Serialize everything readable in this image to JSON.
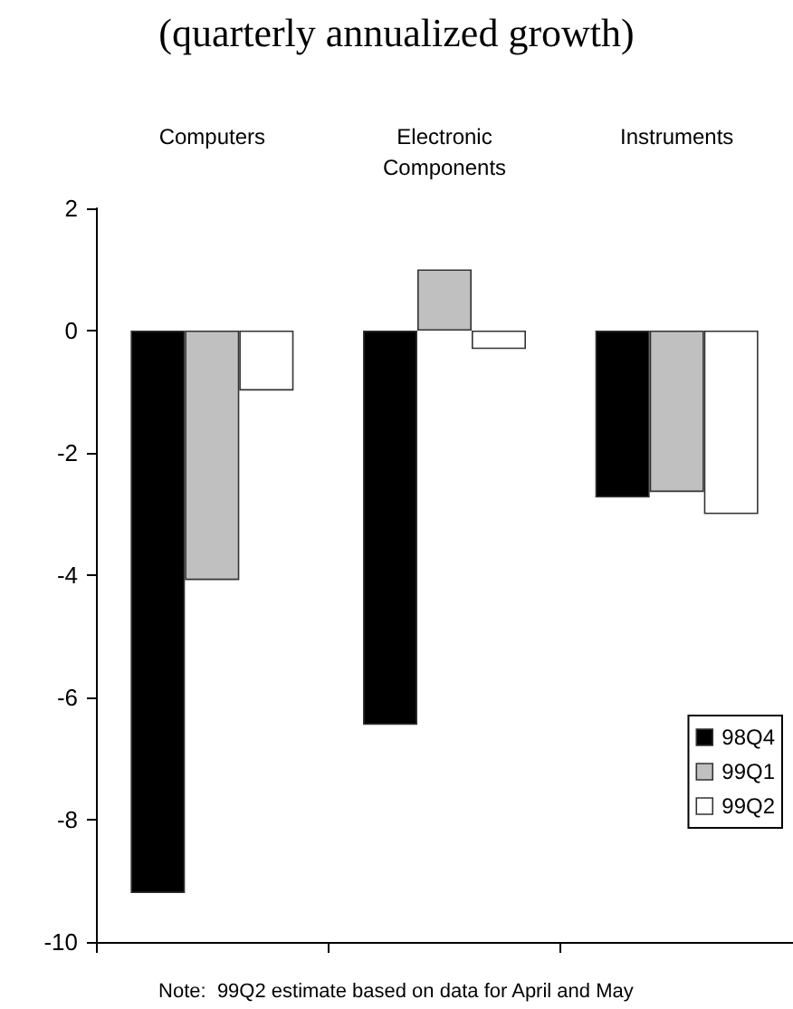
{
  "chart_data": {
    "type": "bar",
    "title": "(quarterly annualized growth)",
    "categories": [
      "Computers",
      "Electronic\nComponents",
      "Instruments"
    ],
    "series": [
      {
        "name": "98Q4",
        "color": "#000000",
        "values": [
          -9.2,
          -6.45,
          -2.73
        ]
      },
      {
        "name": "99Q1",
        "color": "#c0c0c0",
        "values": [
          -4.08,
          1.0,
          -2.64
        ]
      },
      {
        "name": "99Q2",
        "color": "#ffffff",
        "values": [
          -0.98,
          -0.3,
          -3.0
        ]
      }
    ],
    "ylim": [
      -10,
      2
    ],
    "yticks": [
      -10,
      -8,
      -6,
      -4,
      -2,
      0,
      2
    ],
    "grid": false,
    "legend": "bottom right",
    "annotations": [
      "Note:  99Q2 estimate based on data for April and May"
    ]
  }
}
